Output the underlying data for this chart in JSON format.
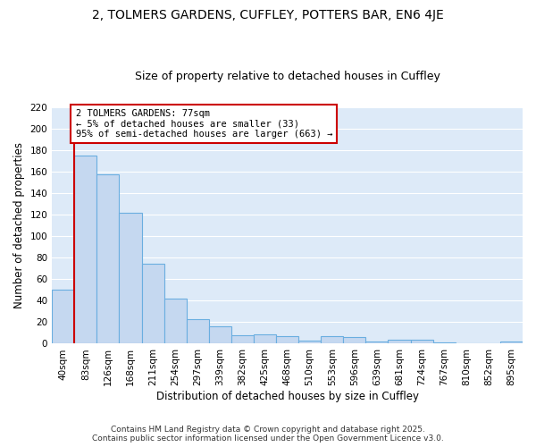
{
  "title_line1": "2, TOLMERS GARDENS, CUFFLEY, POTTERS BAR, EN6 4JE",
  "title_line2": "Size of property relative to detached houses in Cuffley",
  "xlabel": "Distribution of detached houses by size in Cuffley",
  "ylabel": "Number of detached properties",
  "bar_labels": [
    "40sqm",
    "83sqm",
    "126sqm",
    "168sqm",
    "211sqm",
    "254sqm",
    "297sqm",
    "339sqm",
    "382sqm",
    "425sqm",
    "468sqm",
    "510sqm",
    "553sqm",
    "596sqm",
    "639sqm",
    "681sqm",
    "724sqm",
    "767sqm",
    "810sqm",
    "852sqm",
    "895sqm"
  ],
  "bar_values": [
    50,
    175,
    157,
    122,
    74,
    42,
    23,
    16,
    8,
    9,
    7,
    3,
    7,
    6,
    2,
    4,
    4,
    1,
    0,
    0,
    2
  ],
  "bar_color": "#c5d8f0",
  "bar_edge_color": "#6aaee0",
  "bar_edge_width": 0.8,
  "background_color": "#ddeaf8",
  "grid_color": "#ffffff",
  "annotation_text": "2 TOLMERS GARDENS: 77sqm\n← 5% of detached houses are smaller (33)\n95% of semi-detached houses are larger (663) →",
  "annotation_box_color": "#ffffff",
  "annotation_box_edge_color": "#cc0000",
  "red_line_x": 0.5,
  "ylim": [
    0,
    220
  ],
  "yticks": [
    0,
    20,
    40,
    60,
    80,
    100,
    120,
    140,
    160,
    180,
    200,
    220
  ],
  "footer_line1": "Contains HM Land Registry data © Crown copyright and database right 2025.",
  "footer_line2": "Contains public sector information licensed under the Open Government Licence v3.0.",
  "title_fontsize": 10,
  "subtitle_fontsize": 9,
  "axis_label_fontsize": 8.5,
  "tick_fontsize": 7.5,
  "annotation_fontsize": 7.5,
  "footer_fontsize": 6.5
}
